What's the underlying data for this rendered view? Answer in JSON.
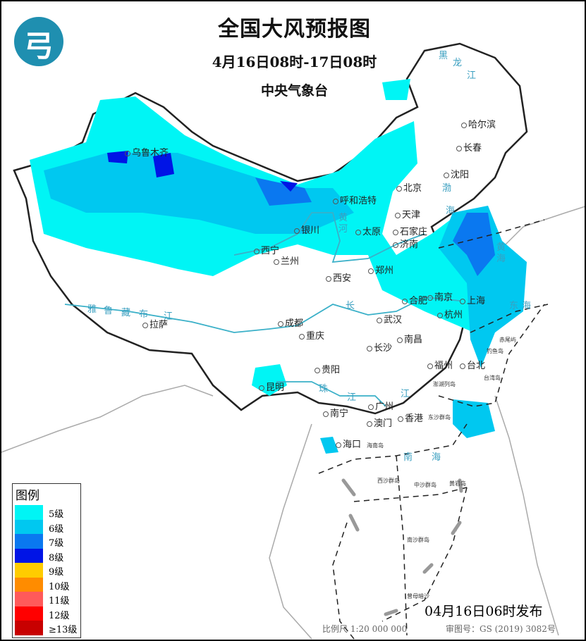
{
  "header": {
    "title": "全国大风预报图",
    "period": "4月16日08时-17日08时",
    "issuer": "中央气象台",
    "logo_icon": "cma-logo-icon"
  },
  "legend": {
    "title": "图例",
    "items": [
      {
        "label": "5级",
        "color": "#00f5f5"
      },
      {
        "label": "6级",
        "color": "#00c8f0"
      },
      {
        "label": "7级",
        "color": "#0a78f0"
      },
      {
        "label": "8级",
        "color": "#0014e6"
      },
      {
        "label": "9级",
        "color": "#ffcc00"
      },
      {
        "label": "10级",
        "color": "#ff8c00"
      },
      {
        "label": "11级",
        "color": "#ff5a5a"
      },
      {
        "label": "12级",
        "color": "#ff0000"
      },
      {
        "label": "≥13级",
        "color": "#c80000"
      }
    ]
  },
  "footer": {
    "issued": "04月16日06时发布",
    "scale": "比例尺 1:20 000 000",
    "review": "审图号：GS (2019) 3082号"
  },
  "cities": [
    "哈尔滨",
    "长春",
    "沈阳",
    "北京",
    "天津",
    "石家庄",
    "太原",
    "呼和浩特",
    "银川",
    "西宁",
    "兰州",
    "西安",
    "郑州",
    "济南",
    "合肥",
    "南京",
    "上海",
    "杭州",
    "武汉",
    "长沙",
    "南昌",
    "福州",
    "台北",
    "成都",
    "重庆",
    "贵阳",
    "昆明",
    "南宁",
    "广州",
    "香港",
    "澳门",
    "海口",
    "拉萨",
    "乌鲁木齐"
  ],
  "islands": [
    "海南岛",
    "东沙群岛",
    "西沙群岛",
    "中沙群岛",
    "黄岩岛",
    "南沙群岛",
    "曾母暗沙",
    "澎湖列岛",
    "台湾岛",
    "钓鱼岛",
    "赤尾屿"
  ],
  "water": [
    "渤",
    "海",
    "黄",
    "海",
    "东",
    "海",
    "南",
    "海",
    "长",
    "江",
    "黄",
    "河",
    "珠",
    "江",
    "雅",
    "鲁",
    "藏",
    "布",
    "江",
    "黑",
    "龙",
    "江"
  ]
}
